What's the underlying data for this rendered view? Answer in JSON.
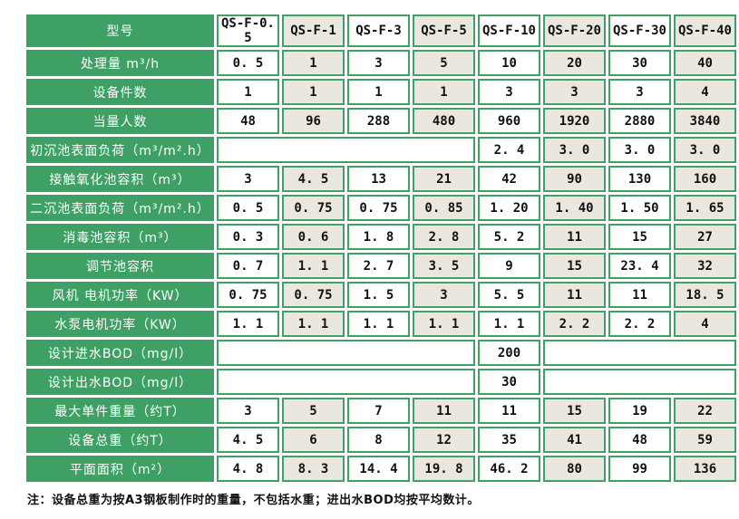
{
  "colors": {
    "table_green": "#3EA065",
    "cell_beige": "#E9E7DE",
    "cell_white": "#FFFFFF",
    "text_dark": "#111111",
    "label_text": "#FFFFFF"
  },
  "table": {
    "header": {
      "label": "型号",
      "models": [
        "QS-F-0. 5",
        "QS-F-1",
        "QS-F-3",
        "QS-F-5",
        "QS-F-10",
        "QS-F-20",
        "QS-F-30",
        "QS-F-40"
      ]
    },
    "rows": [
      {
        "label": "处理量  m³/h",
        "values": [
          "0. 5",
          "1",
          "3",
          "5",
          "10",
          "20",
          "30",
          "40"
        ]
      },
      {
        "label": "设备件数",
        "values": [
          "1",
          "1",
          "1",
          "1",
          "3",
          "3",
          "3",
          "4"
        ]
      },
      {
        "label": "当量人数",
        "values": [
          "48",
          "96",
          "288",
          "480",
          "960",
          "1920",
          "2880",
          "3840"
        ]
      },
      {
        "label": "初沉池表面负荷（m³/m².h）",
        "values": [
          "2. 4",
          "3. 0",
          "3. 0",
          "3. 0"
        ]
      },
      {
        "label": "接触氧化池容积（m³）",
        "values": [
          "3",
          "4. 5",
          "13",
          "21",
          "42",
          "90",
          "130",
          "160"
        ]
      },
      {
        "label": "二沉池表面负荷（m³/m².h）",
        "values": [
          "0. 5",
          "0. 75",
          "0. 75",
          "0. 85",
          "1. 20",
          "1. 40",
          "1. 50",
          "1. 65"
        ]
      },
      {
        "label": "消毒池容积（m³）",
        "values": [
          "0. 3",
          "0. 6",
          "1. 8",
          "2. 8",
          "5. 2",
          "11",
          "15",
          "27"
        ]
      },
      {
        "label": "调节池容积",
        "values": [
          "0. 7",
          "1. 1",
          "2. 7",
          "3. 5",
          "9",
          "15",
          "23. 4",
          "32"
        ]
      },
      {
        "label": "风机 电机功率（KW）",
        "values": [
          "0. 75",
          "0. 75",
          "1. 5",
          "3",
          "5. 5",
          "11",
          "11",
          "18. 5"
        ]
      },
      {
        "label": "水泵电机功率（KW）",
        "values": [
          "1. 1",
          "1. 1",
          "1. 1",
          "1. 1",
          "1. 1",
          "2. 2",
          "2. 2",
          "4"
        ]
      },
      {
        "label": "设计进水BOD（mg/l）",
        "value": "200"
      },
      {
        "label": "设计出水BOD（mg/l）",
        "value": "30"
      },
      {
        "label": "最大单件重量（约T）",
        "values": [
          "3",
          "5",
          "7",
          "11",
          "11",
          "15",
          "19",
          "22"
        ]
      },
      {
        "label": "设备总重（约T）",
        "values": [
          "4. 5",
          "6",
          "8",
          "12",
          "35",
          "41",
          "48",
          "59"
        ]
      },
      {
        "label": "平面面积（m²）",
        "values": [
          "4. 8",
          "8. 3",
          "14. 4",
          "19. 8",
          "46. 2",
          "80",
          "99",
          "136"
        ]
      }
    ]
  },
  "footnote": "注：设备总重为按A3钢板制作时的重量，不包括水重；进出水BOD均按平均数计。"
}
